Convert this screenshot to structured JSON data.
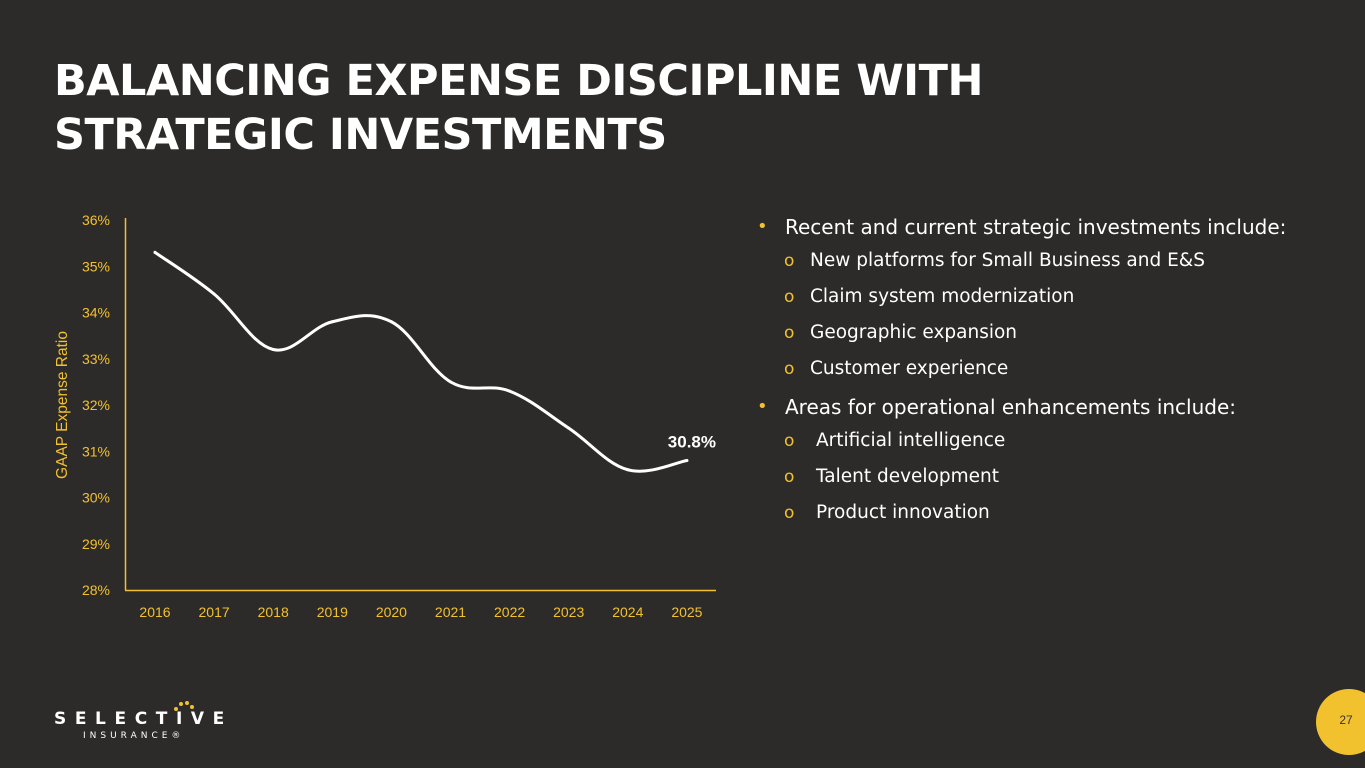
{
  "title": {
    "line1": "BALANCING EXPENSE DISCIPLINE WITH",
    "line2": "STRATEGIC INVESTMENTS"
  },
  "colors": {
    "background": "#2d2b29",
    "accent": "#f2c12e",
    "text": "#ffffff"
  },
  "chart_data": {
    "type": "line",
    "title": "",
    "xlabel": "",
    "ylabel": "GAAP Expense Ratio",
    "x": [
      "2016",
      "2017",
      "2018",
      "2019",
      "2020",
      "2021",
      "2022",
      "2023",
      "2024",
      "2025"
    ],
    "series": [
      {
        "values": [
          35.3,
          34.4,
          33.2,
          33.8,
          33.8,
          32.5,
          32.3,
          31.5,
          30.6,
          30.8
        ]
      }
    ],
    "ylim": [
      28,
      36
    ],
    "yticks": [
      "28%",
      "29%",
      "30%",
      "31%",
      "32%",
      "33%",
      "34%",
      "35%",
      "36%"
    ],
    "annotations": [
      "30.8%"
    ],
    "grid": false
  },
  "bullets": [
    {
      "level": 1,
      "marker": "•",
      "text": "Recent and current strategic investments include:"
    },
    {
      "level": 2,
      "marker": "o",
      "text": "New platforms for Small Business and E&S"
    },
    {
      "level": 2,
      "marker": "o",
      "text": "Claim system modernization"
    },
    {
      "level": 2,
      "marker": "o",
      "text": "Geographic expansion"
    },
    {
      "level": 2,
      "marker": "o",
      "text": "Customer experience"
    },
    {
      "level": 1,
      "marker": "•",
      "text": " Areas for operational enhancements include:"
    },
    {
      "level": 2,
      "marker": "o",
      "text": " Artificial intelligence"
    },
    {
      "level": 2,
      "marker": "o",
      "text": " Talent development"
    },
    {
      "level": 2,
      "marker": "o",
      "text": " Product innovation"
    }
  ],
  "logo": {
    "name": "SELECTIVE",
    "sub": "INSURANCE®"
  },
  "page_number": "27"
}
